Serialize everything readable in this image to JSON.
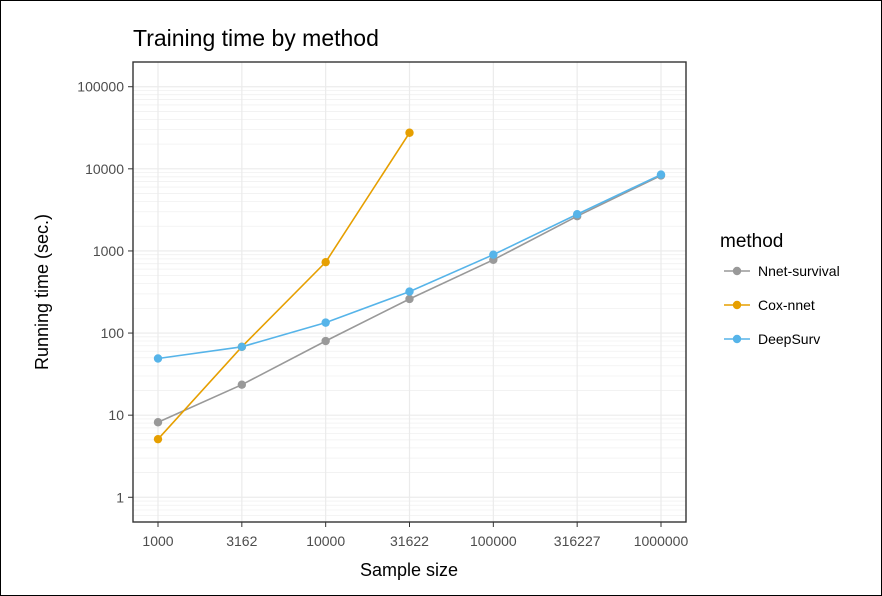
{
  "chart_data": {
    "type": "line",
    "title": "Training time by method",
    "xlabel": "Sample size",
    "ylabel": "Running time (sec.)",
    "x_scale": "log",
    "y_scale": "log",
    "x_ticks": [
      "1000",
      "3162",
      "10000",
      "31622",
      "100000",
      "316227",
      "1000000"
    ],
    "y_ticks": [
      "1",
      "10",
      "100",
      "1000",
      "10000",
      "100000"
    ],
    "xlim": [
      1000,
      1000000
    ],
    "ylim": [
      0.5,
      200000
    ],
    "grid": true,
    "legend": {
      "title": "method",
      "position": "right"
    },
    "series": [
      {
        "name": "Nnet-survival",
        "color": "#999999",
        "x": [
          1000,
          3162,
          10000,
          31622,
          100000,
          316227,
          1000000
        ],
        "y": [
          8.2,
          23.5,
          80,
          260,
          780,
          2650,
          8300
        ]
      },
      {
        "name": "Cox-nnet",
        "color": "#E69F00",
        "x": [
          1000,
          3162,
          10000,
          31622
        ],
        "y": [
          5.1,
          68,
          730,
          27500
        ]
      },
      {
        "name": "DeepSurv",
        "color": "#56B4E9",
        "x": [
          1000,
          3162,
          10000,
          31622,
          100000,
          316227,
          1000000
        ],
        "y": [
          49,
          68,
          134,
          320,
          900,
          2800,
          8500
        ]
      }
    ]
  }
}
